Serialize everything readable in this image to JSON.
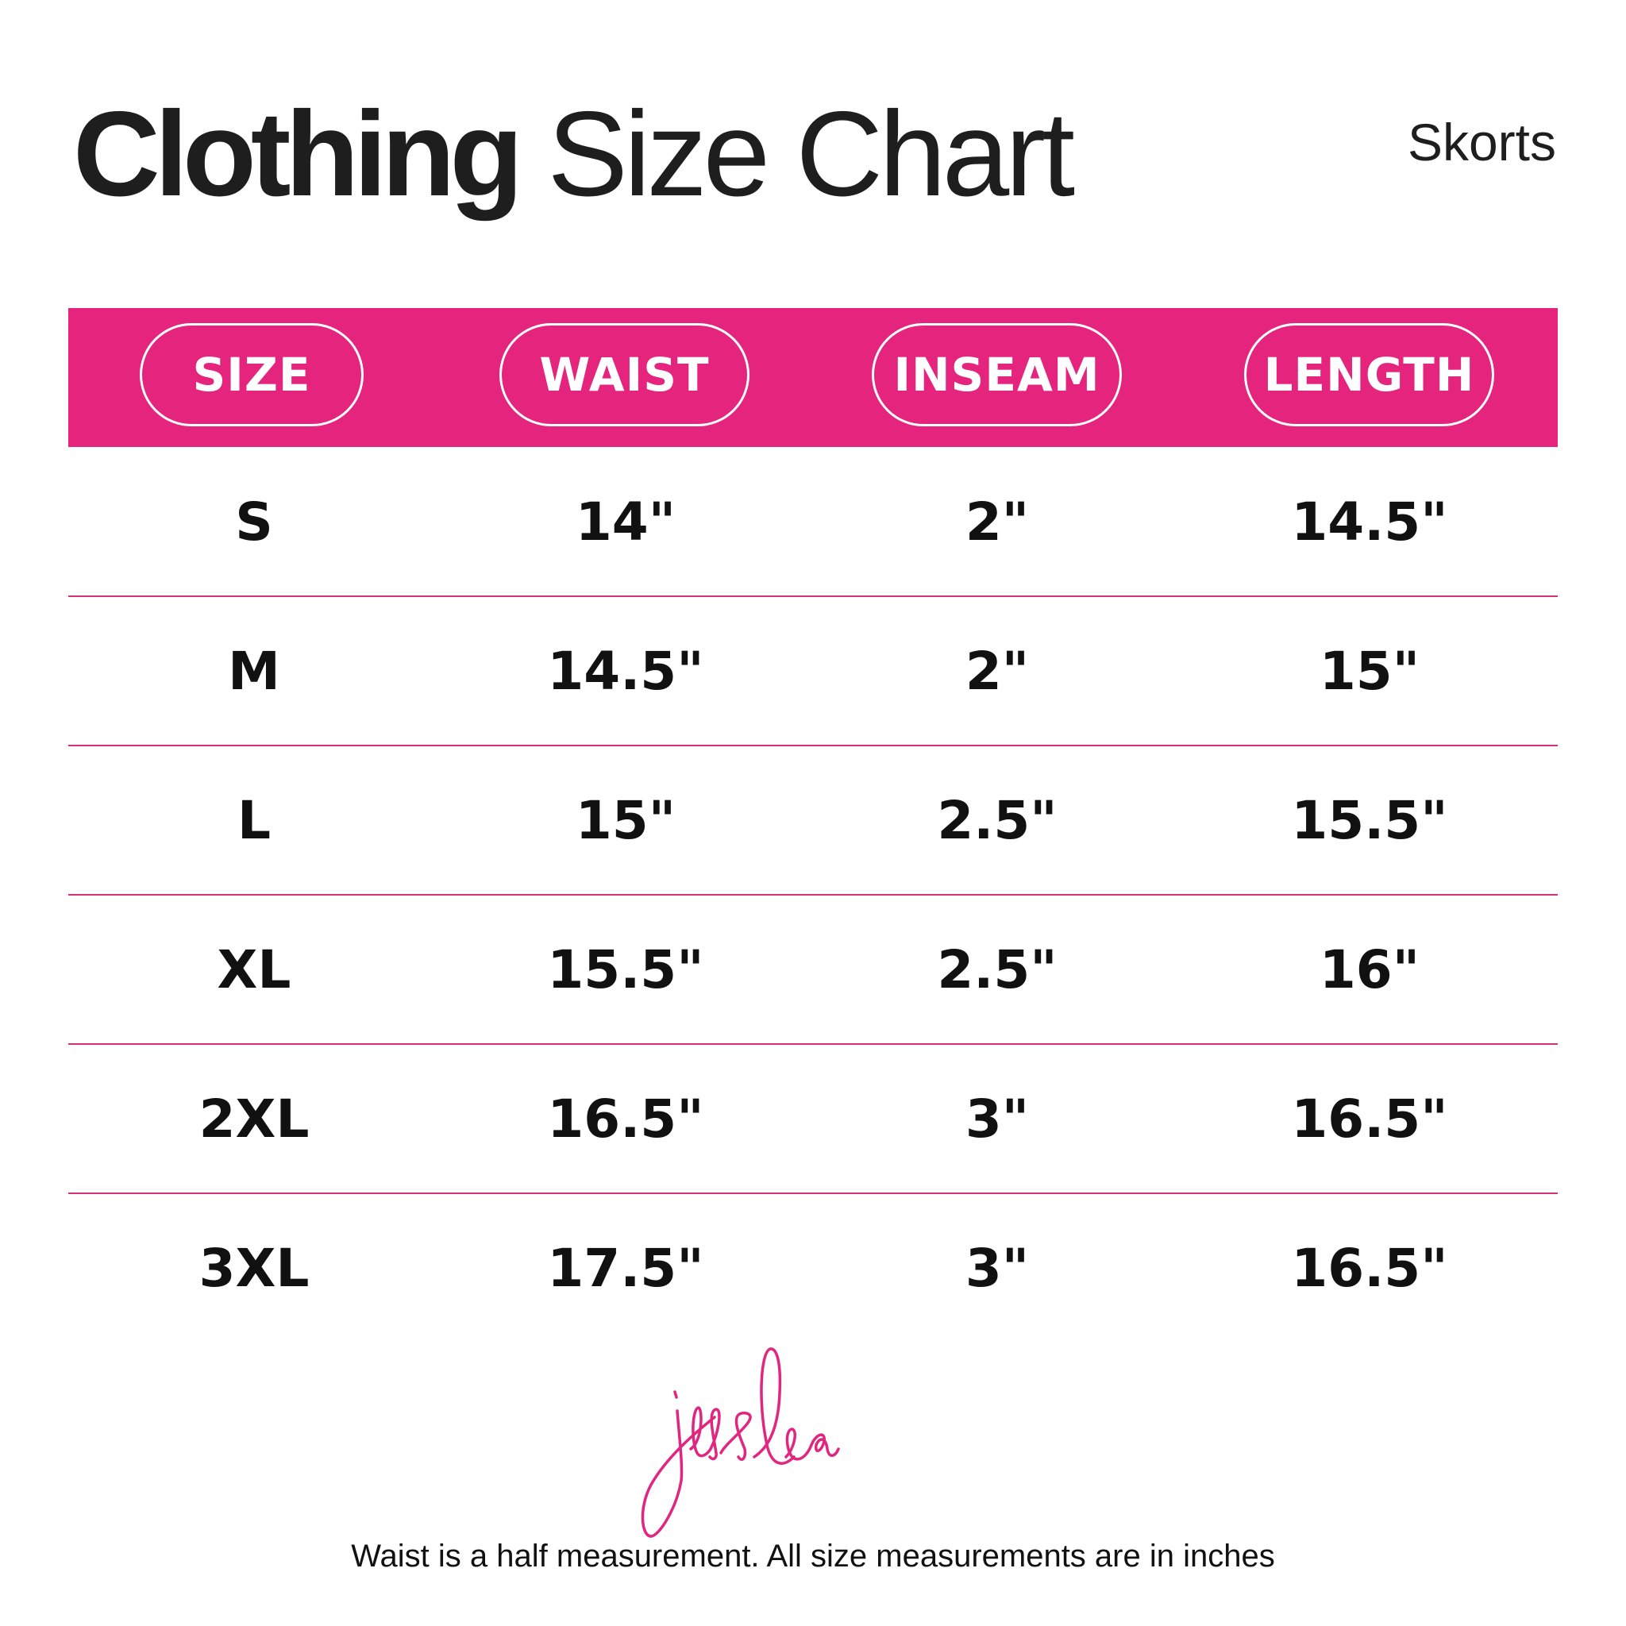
{
  "header": {
    "title_bold": "Clothing",
    "title_light": "Size Chart",
    "subtitle": "Skorts"
  },
  "colors": {
    "accent": "#e5247e",
    "text": "#111111"
  },
  "table": {
    "columns": [
      "SIZE",
      "WAIST",
      "INSEAM",
      "LENGTH"
    ],
    "rows": [
      [
        "S",
        "14\"",
        "2\"",
        "14.5\""
      ],
      [
        "M",
        "14.5\"",
        "2\"",
        "15\""
      ],
      [
        "L",
        "15\"",
        "2.5\"",
        "15.5\""
      ],
      [
        "XL",
        "15.5\"",
        "2.5\"",
        "16\""
      ],
      [
        "2XL",
        "16.5\"",
        "3\"",
        "16.5\""
      ],
      [
        "3XL",
        "17.5\"",
        "3\"",
        "16.5\""
      ]
    ]
  },
  "logo": {
    "text": "jess lea"
  },
  "footer": {
    "note": "Waist is a half measurement. All size measurements are in inches"
  }
}
